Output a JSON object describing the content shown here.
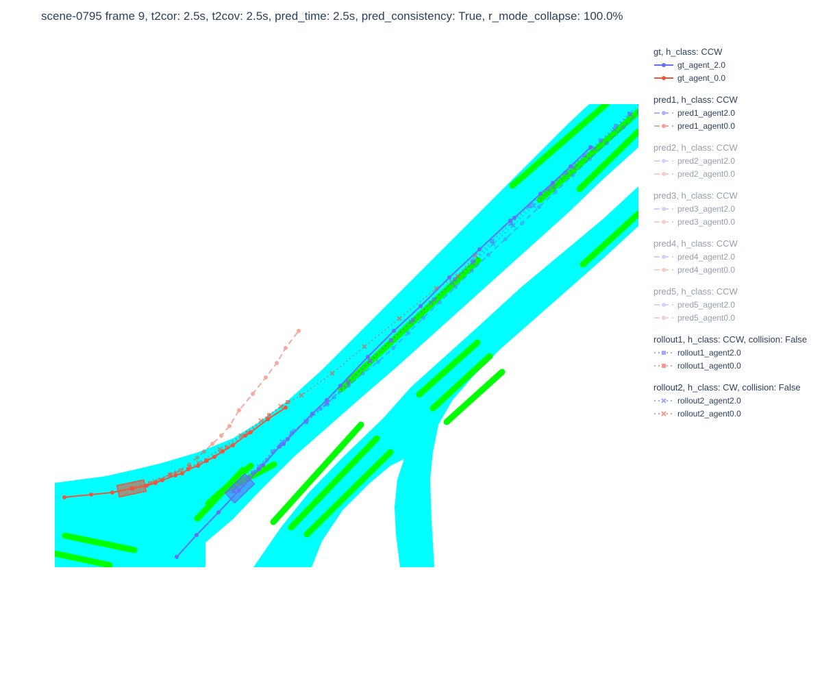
{
  "title": "scene-0795 frame 9, t2cor: 2.5s, t2cov: 2.5s, pred_time: 2.5s, pred_consistency: True, r_mode_collapse: 100.0%",
  "colors": {
    "drivable": "#00ffff",
    "lane_marking": "#00ff00",
    "agent2": "#636efa",
    "agent0": "#ef553b"
  },
  "chart_data": {
    "type": "scatter",
    "title": "scene-0795 frame 9, t2cor: 2.5s, t2cov: 2.5s, pred_time: 2.5s, pred_consistency: True, r_mode_collapse: 100.0%",
    "xlabel": "",
    "ylabel": "",
    "xlim": [
      80,
      932
    ],
    "ylim": [
      828,
      152
    ],
    "grid": false,
    "legend_position": "right",
    "groups": [
      {
        "title": "gt, h_class: CCW",
        "opacity": 1.0,
        "items": [
          {
            "name": "gt_agent_2.0",
            "color": "#636efa",
            "dash": "solid",
            "marker": "circle"
          },
          {
            "name": "gt_agent_0.0",
            "color": "#ef553b",
            "dash": "solid",
            "marker": "circle"
          }
        ]
      },
      {
        "title": "pred1, h_class: CCW",
        "opacity": 0.5,
        "items": [
          {
            "name": "pred1_agent2.0",
            "color": "#636efa",
            "dash": "dash",
            "marker": "circle"
          },
          {
            "name": "pred1_agent0.0",
            "color": "#ef553b",
            "dash": "dash",
            "marker": "circle"
          }
        ]
      },
      {
        "title": "pred2, h_class: CCW",
        "opacity": 0.25,
        "items": [
          {
            "name": "pred2_agent2.0",
            "color": "#636efa",
            "dash": "dash",
            "marker": "circle"
          },
          {
            "name": "pred2_agent0.0",
            "color": "#ef553b",
            "dash": "dash",
            "marker": "circle"
          }
        ]
      },
      {
        "title": "pred3, h_class: CCW",
        "opacity": 0.25,
        "items": [
          {
            "name": "pred3_agent2.0",
            "color": "#636efa",
            "dash": "dash",
            "marker": "circle"
          },
          {
            "name": "pred3_agent0.0",
            "color": "#ef553b",
            "dash": "dash",
            "marker": "circle"
          }
        ]
      },
      {
        "title": "pred4, h_class: CCW",
        "opacity": 0.25,
        "items": [
          {
            "name": "pred4_agent2.0",
            "color": "#636efa",
            "dash": "dash",
            "marker": "circle"
          },
          {
            "name": "pred4_agent0.0",
            "color": "#ef553b",
            "dash": "dash",
            "marker": "circle"
          }
        ]
      },
      {
        "title": "pred5, h_class: CCW",
        "opacity": 0.25,
        "items": [
          {
            "name": "pred5_agent2.0",
            "color": "#636efa",
            "dash": "dash",
            "marker": "circle"
          },
          {
            "name": "pred5_agent0.0",
            "color": "#ef553b",
            "dash": "dash",
            "marker": "circle"
          }
        ]
      },
      {
        "title": "rollout1, h_class: CCW, collision: False",
        "opacity": 0.6,
        "items": [
          {
            "name": "rollout1_agent2.0",
            "color": "#636efa",
            "dash": "dot",
            "marker": "square"
          },
          {
            "name": "rollout1_agent0.0",
            "color": "#ef553b",
            "dash": "dot",
            "marker": "square"
          }
        ]
      },
      {
        "title": "rollout2, h_class: CW, collision: False",
        "opacity": 0.6,
        "items": [
          {
            "name": "rollout2_agent2.0",
            "color": "#636efa",
            "dash": "dot",
            "marker": "x"
          },
          {
            "name": "rollout2_agent0.0",
            "color": "#ef553b",
            "dash": "dot",
            "marker": "x"
          }
        ]
      }
    ],
    "trajectories": [
      {
        "name": "gt_agent_2.0",
        "points": [
          [
            258,
            813
          ],
          [
            287,
            781
          ],
          [
            319,
            748
          ],
          [
            349,
            716
          ],
          [
            378,
            685
          ],
          [
            384,
            679
          ],
          [
            408,
            652
          ],
          [
            414,
            648
          ],
          [
            420,
            641
          ],
          [
            456,
            604
          ],
          [
            477,
            584
          ],
          [
            497,
            563
          ],
          [
            537,
            521
          ],
          [
            575,
            483
          ],
          [
            614,
            447
          ],
          [
            656,
            405
          ],
          [
            700,
            364
          ],
          [
            745,
            322
          ],
          [
            751,
            318
          ],
          [
            789,
            283
          ],
          [
            807,
            267
          ],
          [
            833,
            243
          ],
          [
            862,
            215
          ]
        ]
      },
      {
        "name": "gt_agent_0.0",
        "points": [
          [
            94,
            726
          ],
          [
            133,
            722
          ],
          [
            164,
            719
          ],
          [
            193,
            713
          ],
          [
            214,
            709
          ],
          [
            227,
            705
          ],
          [
            237,
            701
          ],
          [
            256,
            694
          ],
          [
            266,
            691
          ],
          [
            275,
            685
          ],
          [
            289,
            680
          ],
          [
            301,
            673
          ],
          [
            313,
            667
          ],
          [
            325,
            659
          ],
          [
            340,
            650
          ],
          [
            358,
            636
          ],
          [
            366,
            631
          ],
          [
            391,
            612
          ],
          [
            417,
            595
          ]
        ]
      },
      {
        "name": "pred1_agent2.0",
        "points": [
          [
            341,
            717
          ],
          [
            364,
            696
          ],
          [
            389,
            672
          ],
          [
            410,
            649
          ],
          [
            429,
            629
          ],
          [
            448,
            614
          ],
          [
            468,
            597
          ],
          [
            488,
            580
          ],
          [
            509,
            563
          ],
          [
            530,
            545
          ],
          [
            552,
            528
          ],
          [
            574,
            508
          ],
          [
            596,
            486
          ],
          [
            618,
            464
          ],
          [
            642,
            441
          ],
          [
            665,
            419
          ],
          [
            689,
            395
          ],
          [
            713,
            372
          ],
          [
            738,
            349
          ],
          [
            762,
            326
          ],
          [
            787,
            302
          ],
          [
            811,
            280
          ],
          [
            836,
            256
          ],
          [
            861,
            232
          ],
          [
            886,
            209
          ],
          [
            910,
            186
          ],
          [
            933,
            163
          ]
        ]
      },
      {
        "name": "pred1_agent0.0",
        "points": [
          [
            214,
            709
          ],
          [
            233,
            700
          ],
          [
            249,
            692
          ],
          [
            263,
            686
          ],
          [
            276,
            678
          ],
          [
            288,
            668
          ],
          [
            298,
            659
          ],
          [
            310,
            648
          ],
          [
            323,
            636
          ],
          [
            335,
            622
          ],
          [
            349,
            599
          ],
          [
            369,
            575
          ],
          [
            388,
            551
          ],
          [
            404,
            530
          ],
          [
            417,
            508
          ],
          [
            436,
            483
          ]
        ]
      },
      {
        "name": "rollout1_agent2.0",
        "points": [
          [
            341,
            717
          ],
          [
            369,
            690
          ],
          [
            398,
            659
          ],
          [
            426,
            632
          ],
          [
            447,
            616
          ],
          [
            477,
            590
          ],
          [
            508,
            558
          ],
          [
            540,
            527
          ],
          [
            571,
            497
          ],
          [
            603,
            467
          ],
          [
            634,
            437
          ],
          [
            664,
            408
          ],
          [
            691,
            381
          ],
          [
            718,
            352
          ],
          [
            746,
            326
          ],
          [
            773,
            301
          ],
          [
            800,
            276
          ],
          [
            826,
            252
          ],
          [
            853,
            227
          ],
          [
            877,
            205
          ],
          [
            899,
            184
          ],
          [
            919,
            166
          ],
          [
            934,
            152
          ]
        ]
      },
      {
        "name": "rollout1_agent0.0",
        "points": [
          [
            193,
            713
          ],
          [
            219,
            705
          ],
          [
            248,
            693
          ],
          [
            277,
            682
          ],
          [
            302,
            672
          ],
          [
            331,
            653
          ],
          [
            362,
            632
          ],
          [
            393,
            606
          ],
          [
            420,
            587
          ]
        ]
      },
      {
        "name": "rollout2_agent2.0",
        "points": [
          [
            345,
            712
          ],
          [
            378,
            681
          ],
          [
            412,
            645
          ],
          [
            446,
            615
          ],
          [
            478,
            588
          ],
          [
            509,
            558
          ],
          [
            541,
            527
          ],
          [
            571,
            497
          ],
          [
            600,
            470
          ],
          [
            629,
            442
          ],
          [
            660,
            413
          ],
          [
            690,
            384
          ],
          [
            720,
            356
          ],
          [
            749,
            329
          ],
          [
            779,
            300
          ],
          [
            808,
            273
          ],
          [
            838,
            245
          ],
          [
            868,
            217
          ],
          [
            897,
            189
          ],
          [
            920,
            167
          ]
        ]
      },
      {
        "name": "rollout2_agent0.0",
        "points": [
          [
            193,
            713
          ],
          [
            226,
            703
          ],
          [
            258,
            690
          ],
          [
            290,
            676
          ],
          [
            321,
            656
          ],
          [
            352,
            636
          ],
          [
            381,
            614
          ],
          [
            410,
            593
          ],
          [
            440,
            577
          ],
          [
            485,
            545
          ],
          [
            532,
            506
          ],
          [
            583,
            465
          ],
          [
            637,
            421
          ],
          [
            668,
            403
          ],
          [
            694,
            373
          ]
        ]
      }
    ],
    "agent_boxes": [
      {
        "agent": "agent0.0",
        "color": "#ef553b",
        "center": [
          192,
          713
        ],
        "length": 40,
        "width": 17,
        "heading_deg": -12
      },
      {
        "agent": "agent2.0",
        "color": "#636efa",
        "center": [
          350,
          713
        ],
        "length": 40,
        "width": 20,
        "heading_deg": -44
      }
    ]
  }
}
